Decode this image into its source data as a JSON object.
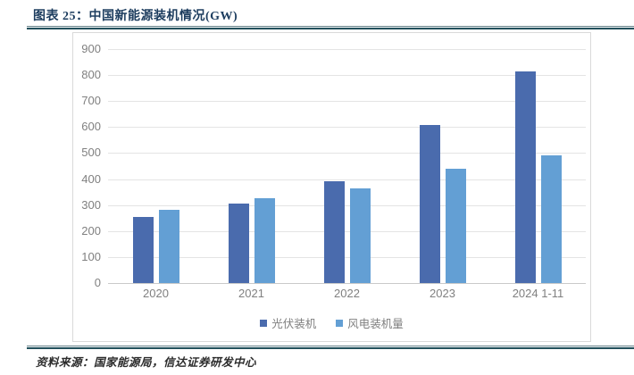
{
  "header": {
    "title": "图表 25：中国新能源装机情况(GW)"
  },
  "chart_data": {
    "type": "bar",
    "title": "中国新能源装机情况(GW)",
    "categories": [
      "2020",
      "2021",
      "2022",
      "2023",
      "2024 1-11"
    ],
    "series": [
      {
        "name": "光伏装机",
        "color": "#4a6bad",
        "values": [
          253,
          306,
          393,
          609,
          815
        ]
      },
      {
        "name": "风电装机量",
        "color": "#639fd4",
        "values": [
          282,
          328,
          365,
          441,
          490
        ]
      }
    ],
    "ylim": [
      0,
      900
    ],
    "yticks": [
      0,
      100,
      200,
      300,
      400,
      500,
      600,
      700,
      800,
      900
    ],
    "grid": true,
    "legend_position": "bottom",
    "colors": {
      "gridline": "#e4e4e4",
      "axis_line": "#c9c9c9",
      "tick_label": "#808080",
      "panel_border": "#d9d9d9",
      "title": "#1c3c5e",
      "separator": "#22505c"
    }
  },
  "footer": {
    "source": "资料来源：国家能源局，信达证券研发中心"
  }
}
